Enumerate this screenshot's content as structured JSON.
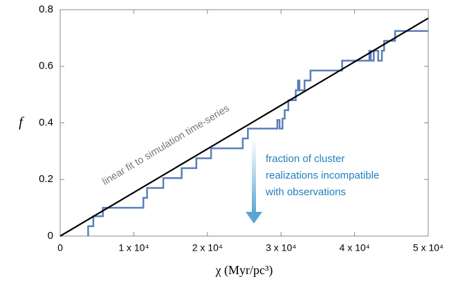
{
  "chart_data": {
    "type": "line",
    "xlabel": "χ (Myr/pc³)",
    "ylabel": "f",
    "xlim": [
      0,
      50000
    ],
    "ylim": [
      0,
      0.8
    ],
    "xticks": [
      0,
      {
        "value": 10000,
        "label": "1 x 10⁴"
      },
      {
        "value": 20000,
        "label": "2 x 10⁴"
      },
      {
        "value": 30000,
        "label": "3 x 10⁴"
      },
      {
        "value": 40000,
        "label": "4 x 10⁴"
      },
      {
        "value": 50000,
        "label": "5 x 10⁴"
      }
    ],
    "yticks": [
      0,
      0.2,
      0.4,
      0.6,
      0.8
    ],
    "series": [
      {
        "name": "simulation time-series",
        "color": "#5b7fb8",
        "x": [
          3800,
          3800,
          4500,
          4500,
          5800,
          5800,
          11300,
          11300,
          11800,
          11800,
          14000,
          14000,
          16500,
          16500,
          18500,
          18500,
          20500,
          20500,
          24800,
          24800,
          25500,
          25500,
          29500,
          29500,
          29800,
          29800,
          30200,
          30200,
          30500,
          30500,
          31000,
          31000,
          32000,
          32000,
          32300,
          32300,
          32500,
          32500,
          33200,
          33200,
          34000,
          34000,
          38300,
          38300,
          42000,
          42000,
          42200,
          42200,
          42600,
          42600,
          43200,
          43200,
          43700,
          43700,
          44000,
          44000,
          45500,
          45500,
          50000
        ],
        "values": [
          0,
          0.035,
          0.035,
          0.07,
          0.07,
          0.1,
          0.1,
          0.135,
          0.135,
          0.17,
          0.17,
          0.205,
          0.205,
          0.24,
          0.24,
          0.275,
          0.275,
          0.31,
          0.31,
          0.345,
          0.345,
          0.38,
          0.38,
          0.41,
          0.41,
          0.38,
          0.38,
          0.415,
          0.415,
          0.445,
          0.445,
          0.48,
          0.48,
          0.515,
          0.515,
          0.55,
          0.55,
          0.515,
          0.515,
          0.55,
          0.55,
          0.585,
          0.585,
          0.62,
          0.62,
          0.655,
          0.655,
          0.62,
          0.62,
          0.655,
          0.655,
          0.62,
          0.62,
          0.655,
          0.655,
          0.69,
          0.69,
          0.725,
          0.725
        ]
      },
      {
        "name": "linear fit",
        "color": "#000000",
        "x": [
          0,
          50000
        ],
        "values": [
          0,
          0.77
        ]
      }
    ],
    "annotations": [
      "linear fit to simulation time-series"
    ],
    "arrow_text": [
      "fraction of cluster",
      "realizations incompatible",
      "with observations"
    ]
  }
}
